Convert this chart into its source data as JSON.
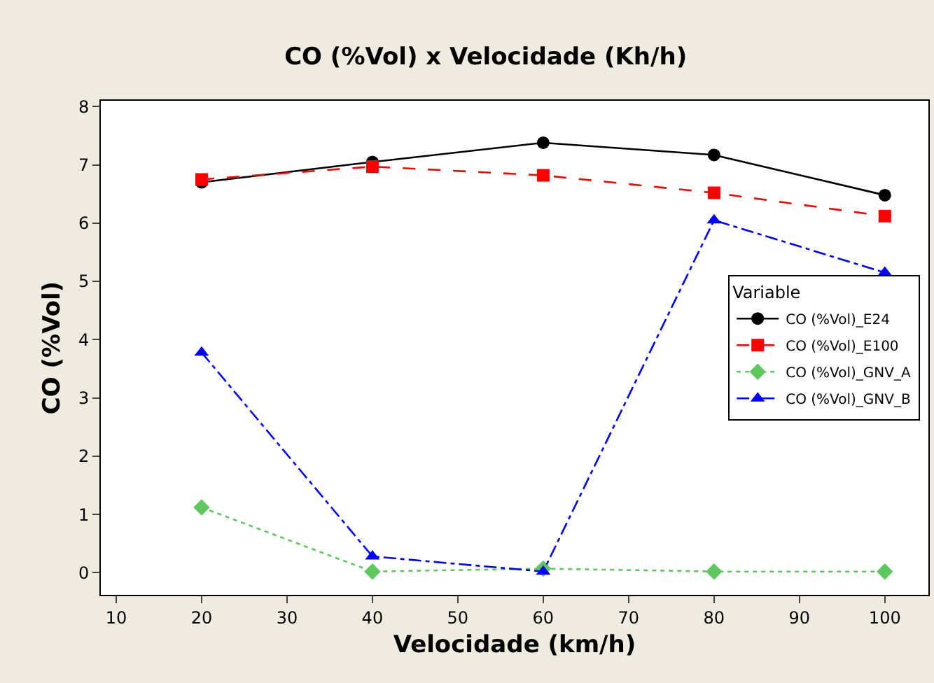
{
  "chart_data": {
    "type": "line",
    "title": "CO (%Vol) x Velocidade (Kh/h)",
    "xlabel": "Velocidade (km/h)",
    "ylabel": "CO (%Vol)",
    "legend_title": "Variable",
    "legend": "right",
    "x": [
      20,
      40,
      60,
      80,
      100
    ],
    "xlim": [
      8.2,
      105.1
    ],
    "xticks": [
      10,
      20,
      30,
      40,
      50,
      60,
      70,
      80,
      90,
      100
    ],
    "ylim": [
      -0.38,
      8.1
    ],
    "yticks": [
      0,
      1,
      2,
      3,
      4,
      5,
      6,
      7,
      8
    ],
    "series": [
      {
        "name": "CO (%Vol)_E24",
        "color": "#000000",
        "values": [
          6.7,
          7.05,
          7.38,
          7.17,
          6.48
        ],
        "marker": "circle",
        "line_style": "solid"
      },
      {
        "name": "CO (%Vol)_E100",
        "color": "#ff0000",
        "values": [
          6.75,
          6.97,
          6.82,
          6.52,
          6.12
        ],
        "marker": "square",
        "line_style": "dashed"
      },
      {
        "name": "CO (%Vol)_GNV_A",
        "color": "#5ec85e",
        "values": [
          1.12,
          0.02,
          0.07,
          0.02,
          0.02
        ],
        "marker": "diamond",
        "line_style": "dotted"
      },
      {
        "name": "CO (%Vol)_GNV_B",
        "color": "#0000ff",
        "values": [
          3.78,
          0.28,
          0.02,
          6.05,
          5.15
        ],
        "marker": "triangle",
        "line_style": "dashdot"
      }
    ]
  }
}
